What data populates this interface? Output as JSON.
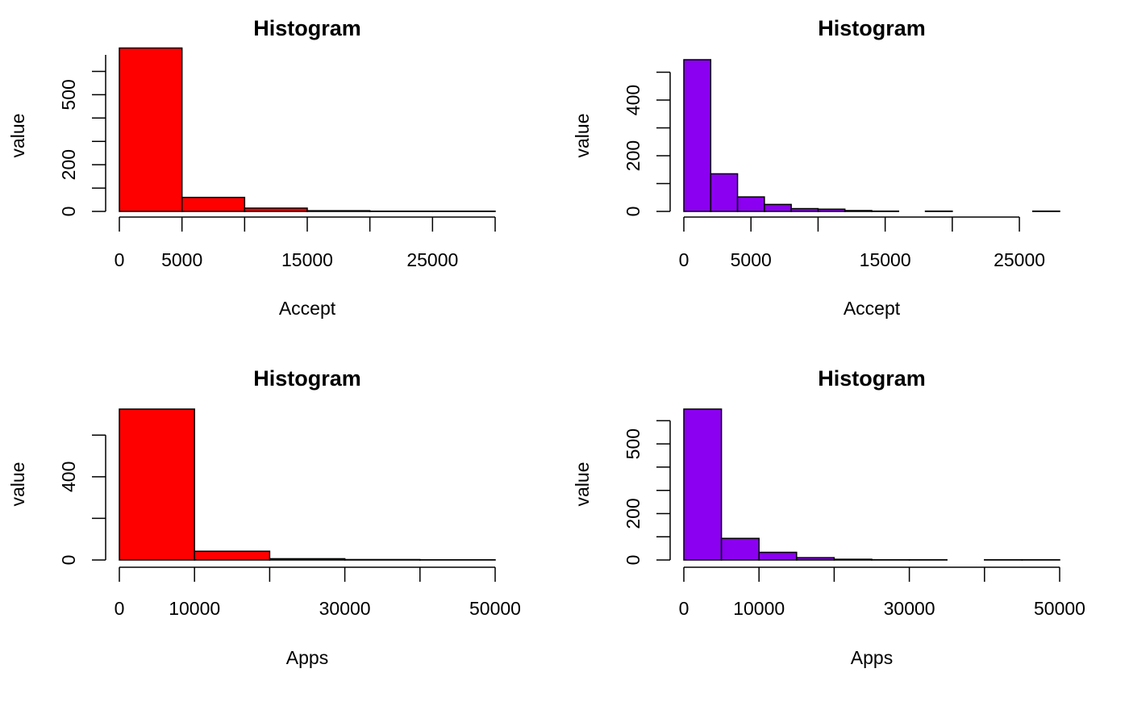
{
  "chart_data": [
    {
      "type": "bar",
      "title": "Histogram",
      "xlabel": "Accept",
      "ylabel": "value",
      "color": "#FF0000",
      "bin_width": 5000,
      "xlim": [
        0,
        30000
      ],
      "ylim": [
        0,
        650
      ],
      "x_ticks": [
        0,
        5000,
        10000,
        15000,
        20000,
        25000,
        30000
      ],
      "x_tick_labels": [
        "0",
        "5000",
        "",
        "15000",
        "",
        "25000",
        ""
      ],
      "y_ticks": [
        0,
        100,
        200,
        300,
        400,
        500,
        600,
        700
      ],
      "y_tick_labels": [
        "0",
        "",
        "200",
        "",
        "",
        "500",
        "",
        ""
      ],
      "bins": [
        {
          "x0": 0,
          "x1": 5000,
          "value": 700
        },
        {
          "x0": 5000,
          "x1": 10000,
          "value": 60
        },
        {
          "x0": 10000,
          "x1": 15000,
          "value": 14
        },
        {
          "x0": 15000,
          "x1": 20000,
          "value": 3
        },
        {
          "x0": 20000,
          "x1": 25000,
          "value": 1
        },
        {
          "x0": 25000,
          "x1": 30000,
          "value": 1
        }
      ]
    },
    {
      "type": "bar",
      "title": "Histogram",
      "xlabel": "Accept",
      "ylabel": "value",
      "color": "#8B00F0",
      "bin_width": 2000,
      "xlim": [
        0,
        28000
      ],
      "ylim": [
        0,
        545
      ],
      "x_ticks": [
        0,
        5000,
        10000,
        15000,
        20000,
        25000
      ],
      "x_tick_labels": [
        "0",
        "5000",
        "",
        "15000",
        "",
        "25000"
      ],
      "y_ticks": [
        0,
        100,
        200,
        300,
        400,
        500
      ],
      "y_tick_labels": [
        "0",
        "",
        "200",
        "",
        "400",
        ""
      ],
      "bins": [
        {
          "x0": 0,
          "x1": 2000,
          "value": 545
        },
        {
          "x0": 2000,
          "x1": 4000,
          "value": 135
        },
        {
          "x0": 4000,
          "x1": 6000,
          "value": 52
        },
        {
          "x0": 6000,
          "x1": 8000,
          "value": 25
        },
        {
          "x0": 8000,
          "x1": 10000,
          "value": 10
        },
        {
          "x0": 10000,
          "x1": 12000,
          "value": 8
        },
        {
          "x0": 12000,
          "x1": 14000,
          "value": 3
        },
        {
          "x0": 14000,
          "x1": 16000,
          "value": 1
        },
        {
          "x0": 16000,
          "x1": 18000,
          "value": 0
        },
        {
          "x0": 18000,
          "x1": 20000,
          "value": 1
        },
        {
          "x0": 20000,
          "x1": 22000,
          "value": 0
        },
        {
          "x0": 22000,
          "x1": 24000,
          "value": 0
        },
        {
          "x0": 24000,
          "x1": 26000,
          "value": 0
        },
        {
          "x0": 26000,
          "x1": 28000,
          "value": 1
        }
      ]
    },
    {
      "type": "bar",
      "title": "Histogram",
      "xlabel": "Apps",
      "ylabel": "value",
      "color": "#FF0000",
      "bin_width": 10000,
      "xlim": [
        0,
        50000
      ],
      "ylim": [
        0,
        725
      ],
      "x_ticks": [
        0,
        10000,
        20000,
        30000,
        40000,
        50000
      ],
      "x_tick_labels": [
        "0",
        "10000",
        "",
        "30000",
        "",
        "50000"
      ],
      "y_ticks": [
        0,
        200,
        400,
        600
      ],
      "y_tick_labels": [
        "0",
        "",
        "400",
        ""
      ],
      "bins": [
        {
          "x0": 0,
          "x1": 10000,
          "value": 725
        },
        {
          "x0": 10000,
          "x1": 20000,
          "value": 42
        },
        {
          "x0": 20000,
          "x1": 30000,
          "value": 6
        },
        {
          "x0": 30000,
          "x1": 40000,
          "value": 2
        },
        {
          "x0": 40000,
          "x1": 50000,
          "value": 1
        }
      ]
    },
    {
      "type": "bar",
      "title": "Histogram",
      "xlabel": "Apps",
      "ylabel": "value",
      "color": "#8B00F0",
      "bin_width": 5000,
      "xlim": [
        0,
        50000
      ],
      "ylim": [
        0,
        650
      ],
      "x_ticks": [
        0,
        10000,
        20000,
        30000,
        40000,
        50000
      ],
      "x_tick_labels": [
        "0",
        "10000",
        "",
        "30000",
        "",
        "50000"
      ],
      "y_ticks": [
        0,
        100,
        200,
        300,
        400,
        500,
        600
      ],
      "y_tick_labels": [
        "0",
        "",
        "200",
        "",
        "",
        "500",
        ""
      ],
      "bins": [
        {
          "x0": 0,
          "x1": 5000,
          "value": 650
        },
        {
          "x0": 5000,
          "x1": 10000,
          "value": 93
        },
        {
          "x0": 10000,
          "x1": 15000,
          "value": 33
        },
        {
          "x0": 15000,
          "x1": 20000,
          "value": 10
        },
        {
          "x0": 20000,
          "x1": 25000,
          "value": 3
        },
        {
          "x0": 25000,
          "x1": 30000,
          "value": 1
        },
        {
          "x0": 30000,
          "x1": 35000,
          "value": 1
        },
        {
          "x0": 35000,
          "x1": 40000,
          "value": 0
        },
        {
          "x0": 40000,
          "x1": 45000,
          "value": 1
        },
        {
          "x0": 45000,
          "x1": 50000,
          "value": 1
        }
      ]
    }
  ]
}
